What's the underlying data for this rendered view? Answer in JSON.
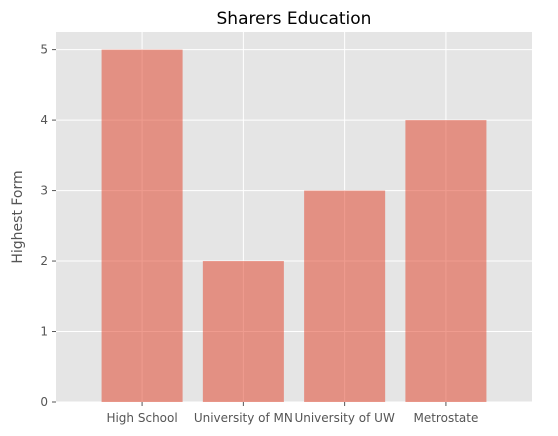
{
  "chart_data": {
    "type": "bar",
    "title": "Sharers Education",
    "xlabel": "",
    "ylabel": "Highest Form",
    "categories": [
      "High School",
      "University of MN",
      "University of UW",
      "Metrostate"
    ],
    "values": [
      5,
      2,
      3,
      4
    ],
    "ylim": [
      0,
      5.25
    ],
    "yticks": [
      "0",
      "1",
      "2",
      "3",
      "4",
      "5"
    ],
    "grid": true,
    "bar_color": "#E24A33",
    "bar_opacity": 0.55,
    "background_color": "#E5E5E5",
    "grid_color": "#FFFFFF"
  }
}
